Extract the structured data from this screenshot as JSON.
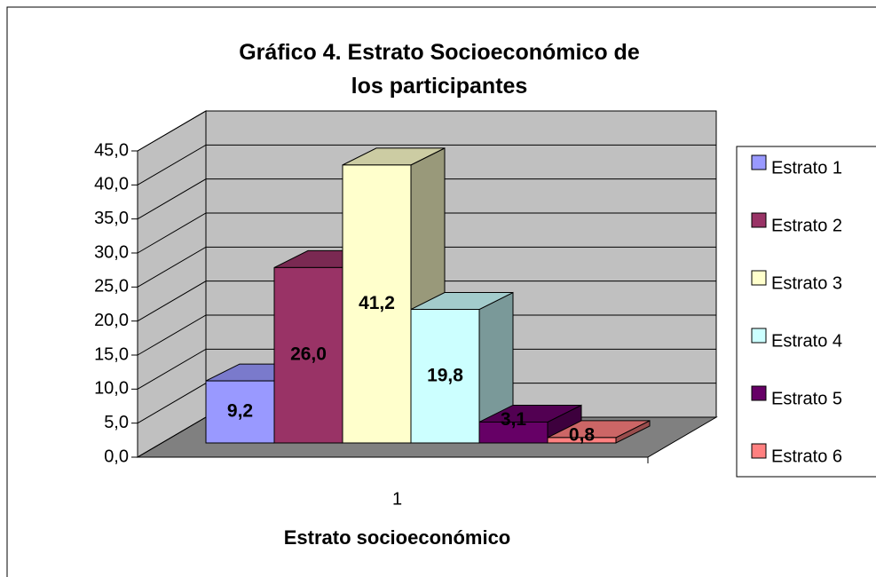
{
  "chart_data": {
    "type": "bar3d",
    "title": "Gráfico 4. Estrato Socioeconómico de los participantes",
    "x_label": "Estrato socioeconómico",
    "categories": [
      "1"
    ],
    "series": [
      {
        "name": "Estrato 1",
        "color": "#9999ff",
        "values": [
          9.2
        ],
        "value_labels": [
          "9,2"
        ]
      },
      {
        "name": "Estrato 2",
        "color": "#993366",
        "values": [
          26.0
        ],
        "value_labels": [
          "26,0"
        ]
      },
      {
        "name": "Estrato 3",
        "color": "#ffffcc",
        "values": [
          41.2
        ],
        "value_labels": [
          "41,2"
        ]
      },
      {
        "name": "Estrato 4",
        "color": "#ccffff",
        "values": [
          19.8
        ],
        "value_labels": [
          "19,8"
        ]
      },
      {
        "name": "Estrato 5",
        "color": "#660066",
        "values": [
          3.1
        ],
        "value_labels": [
          "3,1"
        ]
      },
      {
        "name": "Estrato 6",
        "color": "#ff8080",
        "values": [
          0.8
        ],
        "value_labels": [
          "0,8"
        ]
      }
    ],
    "ylim": [
      0,
      45
    ],
    "yticks": [
      {
        "value": 0,
        "label": "0,0"
      },
      {
        "value": 5,
        "label": "5,0"
      },
      {
        "value": 10,
        "label": "10,0"
      },
      {
        "value": 15,
        "label": "15,0"
      },
      {
        "value": 20,
        "label": "20,0"
      },
      {
        "value": 25,
        "label": "25,0"
      },
      {
        "value": 30,
        "label": "30,0"
      },
      {
        "value": 35,
        "label": "35,0"
      },
      {
        "value": 40,
        "label": "40,0"
      },
      {
        "value": 45,
        "label": "45,0"
      }
    ],
    "grid": true,
    "legend": "right"
  }
}
